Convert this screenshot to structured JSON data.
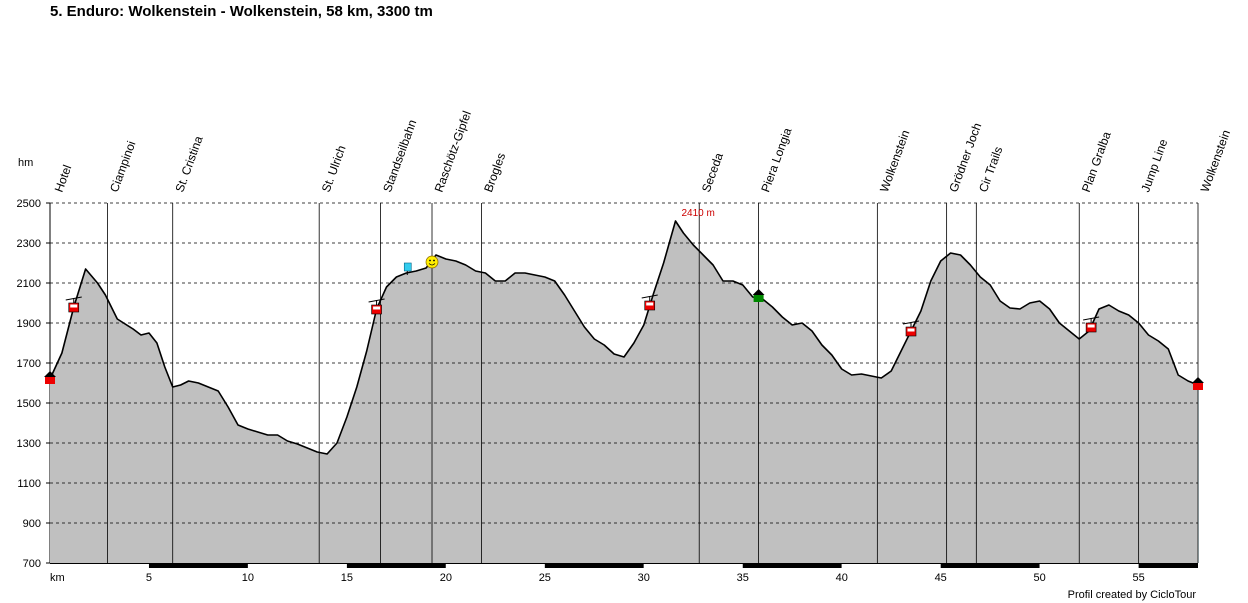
{
  "title": "5. Enduro: Wolkenstein - Wolkenstein, 58 km, 3300 tm",
  "footer": "Profil created by CicloTour",
  "chart_data": {
    "type": "area",
    "title": "5. Enduro: Wolkenstein - Wolkenstein, 58 km, 3300 tm",
    "ylabel": "hm",
    "xlabel": "km",
    "xlim": [
      0,
      58
    ],
    "ylim": [
      700,
      2500
    ],
    "yticks": [
      700,
      900,
      1100,
      1300,
      1500,
      1700,
      1900,
      2100,
      2300,
      2500
    ],
    "xticks": [
      5,
      10,
      15,
      20,
      25,
      30,
      35,
      40,
      45,
      50,
      55
    ],
    "grid": "horizontal dashed",
    "colors": {
      "fill": "#c0c0c0",
      "line": "#000000",
      "peak_label": "#cc0000",
      "poi_red": "#ee0000",
      "poi_green": "#008800",
      "poi_cyan": "#33ccee",
      "poi_yellow": "#ffee00"
    },
    "peak": {
      "km": 31.6,
      "elevation": 2410,
      "label": "2410 m"
    },
    "profile": [
      [
        0,
        1620
      ],
      [
        0.6,
        1750
      ],
      [
        1.2,
        1980
      ],
      [
        1.8,
        2170
      ],
      [
        2.4,
        2100
      ],
      [
        2.8,
        2040
      ],
      [
        3.4,
        1920
      ],
      [
        4.2,
        1870
      ],
      [
        4.6,
        1840
      ],
      [
        5.0,
        1850
      ],
      [
        5.4,
        1800
      ],
      [
        5.8,
        1680
      ],
      [
        6.2,
        1580
      ],
      [
        6.6,
        1590
      ],
      [
        7.0,
        1610
      ],
      [
        7.5,
        1600
      ],
      [
        8.0,
        1580
      ],
      [
        8.5,
        1560
      ],
      [
        9.0,
        1480
      ],
      [
        9.5,
        1390
      ],
      [
        10.0,
        1370
      ],
      [
        10.5,
        1355
      ],
      [
        11.0,
        1340
      ],
      [
        11.5,
        1340
      ],
      [
        12.0,
        1310
      ],
      [
        12.5,
        1295
      ],
      [
        13.0,
        1275
      ],
      [
        13.5,
        1255
      ],
      [
        14.0,
        1245
      ],
      [
        14.5,
        1300
      ],
      [
        15.0,
        1430
      ],
      [
        15.5,
        1580
      ],
      [
        16.0,
        1760
      ],
      [
        16.5,
        1970
      ],
      [
        17.0,
        2080
      ],
      [
        17.5,
        2130
      ],
      [
        18.0,
        2150
      ],
      [
        18.5,
        2160
      ],
      [
        19.0,
        2175
      ],
      [
        19.5,
        2240
      ],
      [
        20.0,
        2220
      ],
      [
        20.5,
        2210
      ],
      [
        21.0,
        2190
      ],
      [
        21.5,
        2160
      ],
      [
        22.0,
        2150
      ],
      [
        22.5,
        2110
      ],
      [
        23.0,
        2110
      ],
      [
        23.5,
        2150
      ],
      [
        24.0,
        2150
      ],
      [
        24.5,
        2140
      ],
      [
        25.0,
        2130
      ],
      [
        25.5,
        2110
      ],
      [
        26.0,
        2040
      ],
      [
        26.5,
        1960
      ],
      [
        27.0,
        1880
      ],
      [
        27.5,
        1820
      ],
      [
        28.0,
        1790
      ],
      [
        28.5,
        1745
      ],
      [
        29.0,
        1730
      ],
      [
        29.5,
        1800
      ],
      [
        30.0,
        1890
      ],
      [
        30.5,
        2050
      ],
      [
        31.0,
        2200
      ],
      [
        31.6,
        2410
      ],
      [
        32.0,
        2350
      ],
      [
        32.5,
        2290
      ],
      [
        33.0,
        2240
      ],
      [
        33.5,
        2190
      ],
      [
        34.0,
        2110
      ],
      [
        34.5,
        2110
      ],
      [
        35.0,
        2090
      ],
      [
        35.5,
        2030
      ],
      [
        36.0,
        2020
      ],
      [
        36.5,
        1980
      ],
      [
        37.0,
        1930
      ],
      [
        37.5,
        1890
      ],
      [
        38.0,
        1900
      ],
      [
        38.5,
        1860
      ],
      [
        39.0,
        1790
      ],
      [
        39.5,
        1740
      ],
      [
        40.0,
        1670
      ],
      [
        40.5,
        1640
      ],
      [
        41.0,
        1645
      ],
      [
        41.5,
        1635
      ],
      [
        42.0,
        1625
      ],
      [
        42.5,
        1660
      ],
      [
        43.0,
        1760
      ],
      [
        43.5,
        1860
      ],
      [
        44.0,
        1960
      ],
      [
        44.5,
        2110
      ],
      [
        45.0,
        2210
      ],
      [
        45.5,
        2250
      ],
      [
        46.0,
        2240
      ],
      [
        46.5,
        2190
      ],
      [
        47.0,
        2130
      ],
      [
        47.5,
        2090
      ],
      [
        48.0,
        2010
      ],
      [
        48.5,
        1975
      ],
      [
        49.0,
        1970
      ],
      [
        49.5,
        2000
      ],
      [
        50.0,
        2010
      ],
      [
        50.5,
        1970
      ],
      [
        51.0,
        1900
      ],
      [
        51.5,
        1860
      ],
      [
        52.0,
        1820
      ],
      [
        52.5,
        1860
      ],
      [
        53.0,
        1970
      ],
      [
        53.5,
        1990
      ],
      [
        54.0,
        1960
      ],
      [
        54.5,
        1940
      ],
      [
        55.0,
        1900
      ],
      [
        55.5,
        1840
      ],
      [
        56.0,
        1810
      ],
      [
        56.5,
        1770
      ],
      [
        57.0,
        1640
      ],
      [
        57.5,
        1610
      ],
      [
        58.0,
        1590
      ]
    ],
    "waypoints": [
      {
        "km": 0.1,
        "label": "Hotel"
      },
      {
        "km": 2.9,
        "label": "Ciampinoi"
      },
      {
        "km": 6.2,
        "label": "St. Cristina"
      },
      {
        "km": 13.6,
        "label": "St. Ulrich"
      },
      {
        "km": 16.7,
        "label": "Standseilbahn"
      },
      {
        "km": 19.3,
        "label": "Raschötz-Gipfel"
      },
      {
        "km": 21.8,
        "label": "Brogles"
      },
      {
        "km": 32.8,
        "label": "Seceda"
      },
      {
        "km": 35.8,
        "label": "Piera Longia"
      },
      {
        "km": 41.8,
        "label": "Wolkenstein"
      },
      {
        "km": 45.3,
        "label": "Grödner Joch"
      },
      {
        "km": 46.8,
        "label": "Cir Trails"
      },
      {
        "km": 52.0,
        "label": "Plan Gralba"
      },
      {
        "km": 55.0,
        "label": "Jump Line"
      },
      {
        "km": 58.0,
        "label": "Wolkenstein"
      }
    ],
    "markers": [
      {
        "km": 0.0,
        "elevation": 1620,
        "icon": "house-icon"
      },
      {
        "km": 1.2,
        "elevation": 1980,
        "icon": "cable-car-icon"
      },
      {
        "km": 16.5,
        "elevation": 1970,
        "icon": "cable-car-icon"
      },
      {
        "km": 18.1,
        "elevation": 2150,
        "icon": "flag-icon"
      },
      {
        "km": 19.3,
        "elevation": 2175,
        "icon": "smiley-icon"
      },
      {
        "km": 30.3,
        "elevation": 1990,
        "icon": "cable-car-icon"
      },
      {
        "km": 35.8,
        "elevation": 2030,
        "icon": "hut-icon"
      },
      {
        "km": 43.5,
        "elevation": 1860,
        "icon": "cable-car-icon"
      },
      {
        "km": 52.6,
        "elevation": 1880,
        "icon": "cable-car-icon"
      },
      {
        "km": 58.0,
        "elevation": 1590,
        "icon": "house-icon"
      }
    ]
  }
}
